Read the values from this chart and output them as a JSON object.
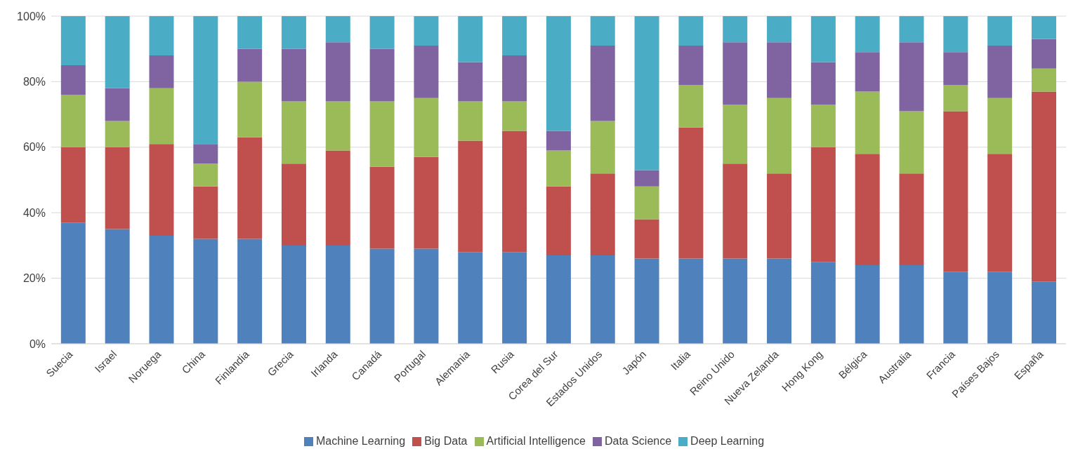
{
  "chart_data": {
    "type": "bar",
    "stacked": true,
    "categories": [
      "Suecia",
      "Israel",
      "Noruega",
      "China",
      "Finlandia",
      "Grecia",
      "Irlanda",
      "Canadá",
      "Portugal",
      "Alemania",
      "Rusia",
      "Corea del Sur",
      "Estados Unidos",
      "Japón",
      "Italia",
      "Reino Unido",
      "Nueva Zelanda",
      "Hong Kong",
      "Bélgica",
      "Australia",
      "Francia",
      "Países Bajos",
      "España"
    ],
    "series": [
      {
        "name": "Machine Learning",
        "color": "#4f81bd",
        "values": [
          37,
          35,
          33,
          32,
          32,
          30,
          30,
          29,
          29,
          28,
          28,
          27,
          27,
          26,
          26,
          26,
          26,
          25,
          24,
          24,
          22,
          22,
          19
        ]
      },
      {
        "name": "Big Data",
        "color": "#c0504d",
        "values": [
          23,
          25,
          28,
          16,
          31,
          25,
          29,
          25,
          28,
          34,
          37,
          21,
          25,
          12,
          40,
          29,
          26,
          35,
          34,
          28,
          49,
          36,
          58
        ]
      },
      {
        "name": "Artificial Intelligence",
        "color": "#9bbb59",
        "values": [
          16,
          8,
          17,
          7,
          17,
          19,
          15,
          20,
          18,
          12,
          9,
          11,
          16,
          10,
          13,
          18,
          23,
          13,
          19,
          19,
          8,
          17,
          7
        ]
      },
      {
        "name": "Data Science",
        "color": "#8064a2",
        "values": [
          9,
          10,
          10,
          6,
          10,
          16,
          18,
          16,
          16,
          12,
          14,
          6,
          23,
          5,
          12,
          19,
          17,
          13,
          12,
          21,
          10,
          16,
          9
        ]
      },
      {
        "name": "Deep Learning",
        "color": "#4bacc6",
        "values": [
          15,
          22,
          12,
          39,
          10,
          10,
          8,
          10,
          9,
          14,
          12,
          35,
          9,
          47,
          9,
          8,
          8,
          14,
          11,
          8,
          11,
          9,
          7
        ]
      }
    ],
    "ylim": [
      0,
      100
    ],
    "yticks": [
      {
        "value": 0,
        "label": "0%"
      },
      {
        "value": 20,
        "label": "20%"
      },
      {
        "value": 40,
        "label": "40%"
      },
      {
        "value": 60,
        "label": "60%"
      },
      {
        "value": 80,
        "label": "80%"
      },
      {
        "value": 100,
        "label": "100%"
      }
    ],
    "grid": "y",
    "legend": "bottom"
  }
}
